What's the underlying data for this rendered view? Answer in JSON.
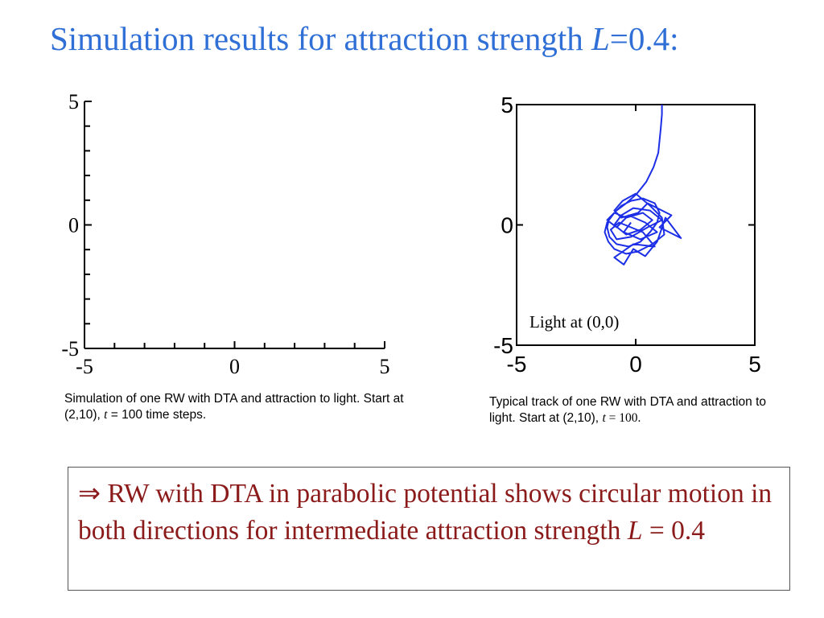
{
  "slide": {
    "title": {
      "text": "Simulation results for attraction strength ",
      "symbol": "L",
      "value": "=0.4:"
    },
    "conclusion": {
      "arrow": "⇒",
      "text": " RW with DTA in parabolic potential shows circular motion in both directions for intermediate attraction strength ",
      "symbol": "L",
      "equals": " = ",
      "value": "0.4"
    }
  },
  "chart_data": [
    {
      "type": "scatter",
      "xlim": [
        -5,
        5
      ],
      "ylim": [
        -5,
        5
      ],
      "xticklabels": [
        "-5",
        "0",
        "5"
      ],
      "yticklabels": [
        "5",
        "0",
        "-5"
      ],
      "series": [],
      "caption": {
        "before": "Simulation of one RW with DTA and attraction to light. Start at (2,10), ",
        "t": "t",
        "after": " = 100 time steps."
      }
    },
    {
      "type": "line",
      "xlim": [
        -5,
        5
      ],
      "ylim": [
        -5,
        5
      ],
      "xticklabels": [
        "-5",
        "0",
        "5"
      ],
      "yticklabels": [
        "5",
        "0",
        "-5"
      ],
      "annotation": "Light at (0,0)",
      "series_color": "#1c2fe6",
      "series": [
        {
          "x": [
            1.1,
            1.1,
            1.05,
            1.0,
            0.95,
            0.75,
            0.45,
            0.05,
            -0.4,
            -0.8,
            -1.1,
            -1.2,
            -1.1,
            -0.8,
            -0.3,
            0.2,
            0.6,
            0.9,
            1.0,
            0.8,
            0.3,
            -0.2,
            -0.6,
            -0.9,
            -1.2,
            -1.3,
            -1.15,
            -0.9,
            -0.4,
            0.1,
            0.7,
            1.2,
            1.1,
            0.6,
            0.0,
            -0.55,
            -0.9,
            -0.6,
            0.1,
            0.5,
            1.5,
            1.0,
            1.9,
            1.25,
            0.9,
            0.4,
            -0.1,
            -0.5,
            -0.9,
            -0.1,
            0.8,
            0.3,
            -0.7,
            -1.05,
            -0.8,
            -0.2,
            0.5,
            1.1,
            0.6,
            -0.1,
            -0.6,
            -0.9,
            -0.4,
            0.2,
            0.7,
            0.3,
            -0.4,
            -0.9,
            -1.2,
            -0.8,
            -0.3,
            0.4,
            0.9,
            0.2,
            -0.5,
            -0.2
          ],
          "y": [
            5.0,
            4.6,
            4.0,
            3.5,
            3.0,
            2.4,
            1.8,
            1.3,
            0.9,
            0.6,
            0.3,
            -0.1,
            -0.5,
            -0.8,
            -0.9,
            -0.7,
            -0.3,
            0.1,
            0.5,
            0.9,
            1.1,
            1.0,
            0.8,
            0.5,
            0.1,
            -0.3,
            -0.7,
            -1.0,
            -1.2,
            -1.1,
            -0.8,
            -0.4,
            0.3,
            0.8,
            1.3,
            1.0,
            0.6,
            0.3,
            0.5,
            0.9,
            0.4,
            -0.1,
            -0.55,
            0.3,
            -0.7,
            -1.3,
            -1.0,
            -1.65,
            -1.35,
            -0.8,
            -0.9,
            -0.3,
            0.1,
            -0.2,
            -0.6,
            -0.5,
            -0.1,
            0.2,
            0.6,
            0.7,
            0.4,
            0.0,
            -0.4,
            -0.2,
            0.2,
            0.5,
            0.3,
            0.5,
            0.2,
            -0.1,
            0.4,
            0.1,
            -0.3,
            -0.6,
            -0.3,
            0.1
          ]
        }
      ],
      "caption": {
        "before": "Typical track of one RW with DTA and attraction to light. Start at (2,10), ",
        "t": "t",
        "after": " = 100."
      }
    }
  ]
}
